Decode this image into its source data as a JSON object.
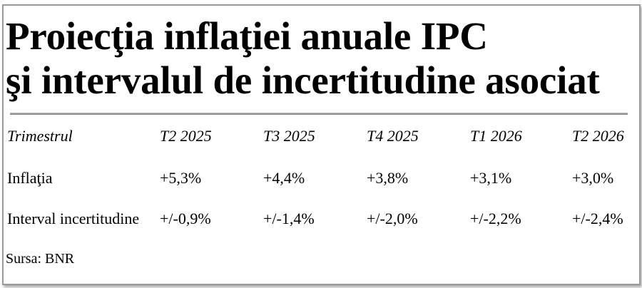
{
  "title_line1": "Proiecţia inflaţiei anuale IPC",
  "title_line2": "şi intervalul de incertitudine asociat",
  "table": {
    "header": [
      "Trimestrul",
      "T2 2025",
      "T3 2025",
      "T4 2025",
      "T1 2026",
      "T2 2026"
    ],
    "rows": [
      [
        "Inflaţia",
        "+5,3%",
        "+4,4%",
        "+3,8%",
        "+3,1%",
        "+3,0%"
      ],
      [
        "Interval incertitudine",
        "+/-0,9%",
        "+/-1,4%",
        "+/-2,0%",
        "+/-2,2%",
        "+/-2,4%"
      ]
    ]
  },
  "source": "Sursa: BNR"
}
